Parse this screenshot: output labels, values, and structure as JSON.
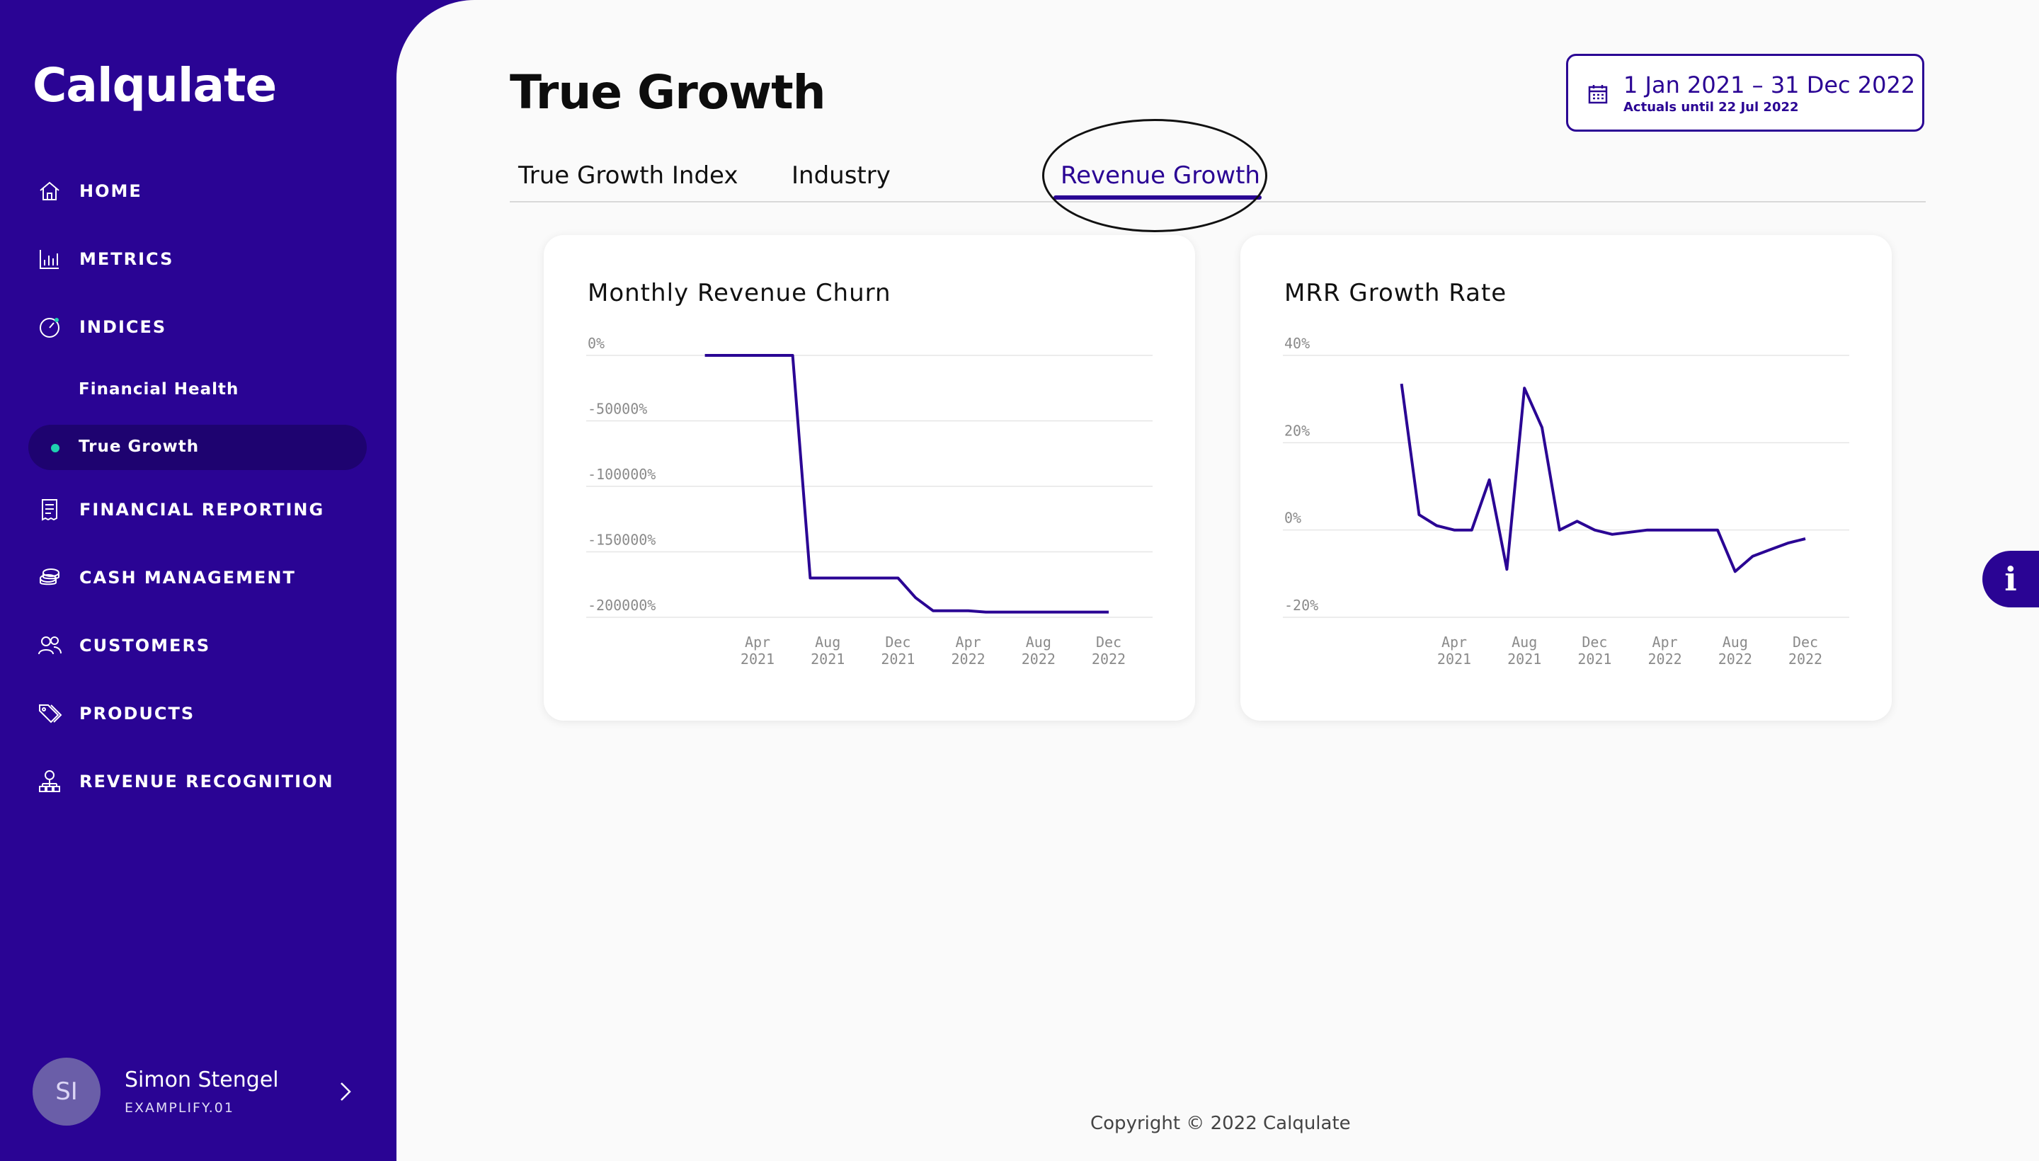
{
  "sidebar": {
    "logo": "Calqulate",
    "nav": [
      {
        "label": "HOME",
        "icon": "home-icon"
      },
      {
        "label": "METRICS",
        "icon": "bar-chart-icon"
      },
      {
        "label": "INDICES",
        "icon": "gauge-icon"
      },
      {
        "label": "FINANCIAL REPORTING",
        "icon": "receipt-icon"
      },
      {
        "label": "CASH MANAGEMENT",
        "icon": "coins-icon"
      },
      {
        "label": "CUSTOMERS",
        "icon": "users-icon"
      },
      {
        "label": "PRODUCTS",
        "icon": "tags-icon"
      },
      {
        "label": "REVENUE RECOGNITION",
        "icon": "hierarchy-icon"
      }
    ],
    "sub_items": [
      "Financial Health",
      "True Growth"
    ],
    "active_sub": "True Growth",
    "user": {
      "initials": "SI",
      "name": "Simon Stengel",
      "org": "EXAMPLIFY.01"
    }
  },
  "header": {
    "title": "True Growth",
    "date_range": "1 Jan 2021 – 31 Dec 2022",
    "date_note": "Actuals until 22 Jul 2022"
  },
  "tabs": [
    {
      "label": "True Growth Index",
      "active": false
    },
    {
      "label": "Industry",
      "active": false
    },
    {
      "label": "Revenue Growth",
      "active": true
    }
  ],
  "colors": {
    "accent": "#2a0494",
    "teal": "#1fd1b0"
  },
  "chart_data": [
    {
      "type": "line",
      "title": "Monthly Revenue Churn",
      "x": [
        "Jan 2021",
        "Feb 2021",
        "Mar 2021",
        "Apr 2021",
        "May 2021",
        "Jun 2021",
        "Jul 2021",
        "Aug 2021",
        "Sep 2021",
        "Oct 2021",
        "Nov 2021",
        "Dec 2021",
        "Jan 2022",
        "Feb 2022",
        "Mar 2022",
        "Apr 2022",
        "May 2022",
        "Jun 2022",
        "Jul 2022",
        "Aug 2022",
        "Sep 2022",
        "Oct 2022",
        "Nov 2022",
        "Dec 2022"
      ],
      "series": [
        {
          "values": [
            0,
            0,
            0,
            0,
            0,
            0,
            -170000,
            -170000,
            -170000,
            -170000,
            -170000,
            -170000,
            -185000,
            -195000,
            -195000,
            -195000,
            -196000,
            -196000,
            -196000,
            -196000,
            -196000,
            -196000,
            -196000,
            -196000
          ]
        }
      ],
      "y_ticks": [
        0,
        -50000,
        -100000,
        -150000,
        -200000
      ],
      "y_tick_labels": [
        "0%",
        "-50000%",
        "-100000%",
        "-150000%",
        "-200000%"
      ],
      "x_tick_labels": [
        [
          "Apr",
          "2021"
        ],
        [
          "Aug",
          "2021"
        ],
        [
          "Dec",
          "2021"
        ],
        [
          "Apr",
          "2022"
        ],
        [
          "Aug",
          "2022"
        ],
        [
          "Dec",
          "2022"
        ]
      ],
      "ylim": [
        -200000,
        0
      ],
      "grid": true
    },
    {
      "type": "line",
      "title": "MRR Growth Rate",
      "x": [
        "Jan 2021",
        "Feb 2021",
        "Mar 2021",
        "Apr 2021",
        "May 2021",
        "Jun 2021",
        "Jul 2021",
        "Aug 2021",
        "Sep 2021",
        "Oct 2021",
        "Nov 2021",
        "Dec 2021",
        "Jan 2022",
        "Feb 2022",
        "Mar 2022",
        "Apr 2022",
        "May 2022",
        "Jun 2022",
        "Jul 2022",
        "Aug 2022",
        "Sep 2022",
        "Oct 2022",
        "Nov 2022",
        "Dec 2022"
      ],
      "series": [
        {
          "values": [
            33.5,
            3.5,
            1,
            0,
            0,
            11.5,
            -9,
            32.5,
            23.5,
            0,
            2,
            0,
            -1,
            -0.5,
            0,
            0,
            0,
            0,
            0,
            -9.5,
            -6,
            -4.5,
            -3,
            -2
          ]
        }
      ],
      "y_ticks": [
        40,
        20,
        0,
        -20
      ],
      "y_tick_labels": [
        "40%",
        "20%",
        "0%",
        "-20%"
      ],
      "x_tick_labels": [
        [
          "Apr",
          "2021"
        ],
        [
          "Aug",
          "2021"
        ],
        [
          "Dec",
          "2021"
        ],
        [
          "Apr",
          "2022"
        ],
        [
          "Aug",
          "2022"
        ],
        [
          "Dec",
          "2022"
        ]
      ],
      "ylim": [
        -20,
        40
      ],
      "grid": true
    }
  ],
  "footer": {
    "copyright": "Copyright © 2022 Calqulate"
  }
}
